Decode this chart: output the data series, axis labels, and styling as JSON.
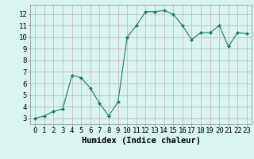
{
  "x": [
    0,
    1,
    2,
    3,
    4,
    5,
    6,
    7,
    8,
    9,
    10,
    11,
    12,
    13,
    14,
    15,
    16,
    17,
    18,
    19,
    20,
    21,
    22,
    23
  ],
  "y": [
    3.0,
    3.2,
    3.6,
    3.8,
    6.7,
    6.5,
    5.6,
    4.3,
    3.2,
    4.4,
    10.0,
    11.0,
    12.2,
    12.2,
    12.3,
    12.0,
    11.0,
    9.8,
    10.4,
    10.4,
    11.0,
    9.2,
    10.4,
    10.3
  ],
  "line_color": "#1a7a6e",
  "marker": "D",
  "marker_size": 2.0,
  "bg_color": "#d8f5f0",
  "grid_color": "#c8aaaa",
  "xlabel": "Humidex (Indice chaleur)",
  "xlabel_fontsize": 7.5,
  "tick_fontsize": 6.5,
  "xlim": [
    -0.5,
    23.5
  ],
  "ylim": [
    2.5,
    12.8
  ],
  "yticks": [
    3,
    4,
    5,
    6,
    7,
    8,
    9,
    10,
    11,
    12
  ],
  "xticks": [
    0,
    1,
    2,
    3,
    4,
    5,
    6,
    7,
    8,
    9,
    10,
    11,
    12,
    13,
    14,
    15,
    16,
    17,
    18,
    19,
    20,
    21,
    22,
    23
  ]
}
